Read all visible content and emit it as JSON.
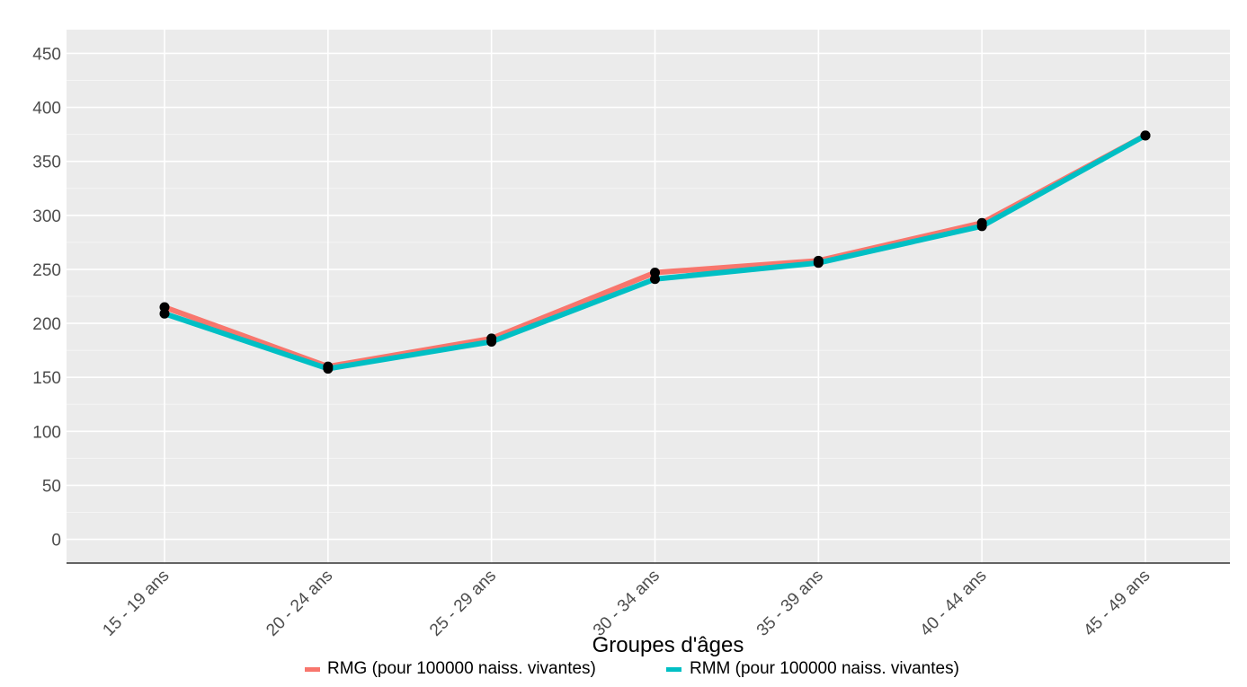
{
  "chart_data": {
    "type": "line",
    "categories": [
      "15 - 19 ans",
      "20 - 24 ans",
      "25 - 29 ans",
      "30 - 34 ans",
      "35 - 39 ans",
      "40 - 44 ans",
      "45 - 49 ans"
    ],
    "series": [
      {
        "name": "RMG (pour 100000 naiss. vivantes)",
        "color": "#F8766D",
        "values": [
          215,
          160,
          186,
          247,
          258,
          293,
          374
        ]
      },
      {
        "name": "RMM (pour 100000 naiss. vivantes)",
        "color": "#00BFC4",
        "values": [
          209,
          158,
          183,
          241,
          256,
          290,
          374
        ]
      }
    ],
    "xlabel": "Groupes d'âges",
    "ylabel": "",
    "yticks": [
      0,
      50,
      100,
      150,
      200,
      250,
      300,
      350,
      400,
      450
    ],
    "ylim": [
      -22,
      472
    ],
    "grid": true,
    "legend_position": "bottom",
    "panel_background": "#EBEBEB",
    "point_color": "#000000"
  }
}
